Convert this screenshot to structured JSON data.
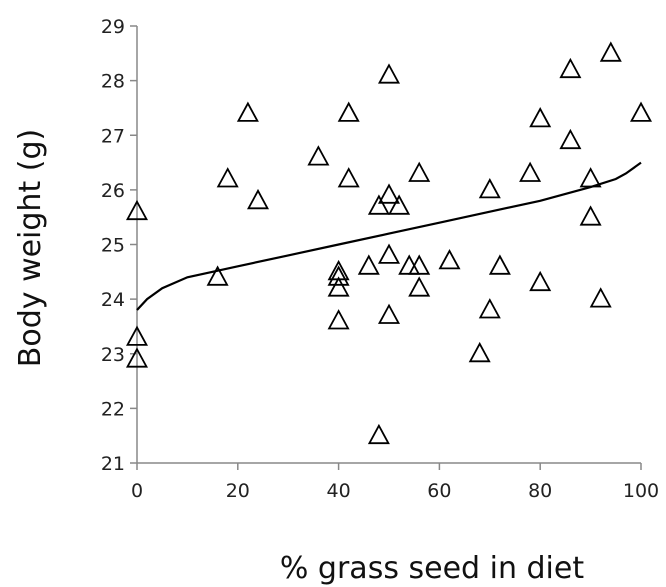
{
  "chart_data": {
    "type": "scatter",
    "xlabel": "% grass seed in diet",
    "ylabel": "Body weight (g)",
    "xlim": [
      0,
      100
    ],
    "ylim": [
      21,
      29
    ],
    "xticks": [
      "0",
      "20",
      "40",
      "60",
      "80",
      "100"
    ],
    "yticks": [
      "21",
      "22",
      "23",
      "24",
      "25",
      "26",
      "27",
      "28",
      "29"
    ],
    "grid": false,
    "marker": "open-triangle",
    "points": [
      {
        "x": 0,
        "y": 25.6
      },
      {
        "x": 0,
        "y": 23.3
      },
      {
        "x": 0,
        "y": 22.9
      },
      {
        "x": 16,
        "y": 24.4
      },
      {
        "x": 18,
        "y": 26.2
      },
      {
        "x": 22,
        "y": 27.4
      },
      {
        "x": 24,
        "y": 25.8
      },
      {
        "x": 36,
        "y": 26.6
      },
      {
        "x": 40,
        "y": 24.5
      },
      {
        "x": 40,
        "y": 24.4
      },
      {
        "x": 40,
        "y": 24.2
      },
      {
        "x": 40,
        "y": 23.6
      },
      {
        "x": 42,
        "y": 27.4
      },
      {
        "x": 42,
        "y": 26.2
      },
      {
        "x": 46,
        "y": 24.6
      },
      {
        "x": 48,
        "y": 25.7
      },
      {
        "x": 48,
        "y": 21.5
      },
      {
        "x": 50,
        "y": 28.1
      },
      {
        "x": 50,
        "y": 25.9
      },
      {
        "x": 50,
        "y": 24.8
      },
      {
        "x": 50,
        "y": 23.7
      },
      {
        "x": 52,
        "y": 25.7
      },
      {
        "x": 54,
        "y": 24.6
      },
      {
        "x": 56,
        "y": 26.3
      },
      {
        "x": 56,
        "y": 24.6
      },
      {
        "x": 56,
        "y": 24.2
      },
      {
        "x": 62,
        "y": 24.7
      },
      {
        "x": 68,
        "y": 23.0
      },
      {
        "x": 70,
        "y": 26.0
      },
      {
        "x": 70,
        "y": 23.8
      },
      {
        "x": 72,
        "y": 24.6
      },
      {
        "x": 78,
        "y": 26.3
      },
      {
        "x": 80,
        "y": 27.3
      },
      {
        "x": 80,
        "y": 24.3
      },
      {
        "x": 86,
        "y": 28.2
      },
      {
        "x": 86,
        "y": 26.9
      },
      {
        "x": 90,
        "y": 26.2
      },
      {
        "x": 90,
        "y": 25.5
      },
      {
        "x": 92,
        "y": 24.0
      },
      {
        "x": 94,
        "y": 28.5
      },
      {
        "x": 100,
        "y": 27.4
      }
    ],
    "fit_line": {
      "x": [
        0,
        2,
        5,
        10,
        15,
        20,
        30,
        40,
        50,
        60,
        70,
        80,
        90,
        95,
        97,
        100
      ],
      "y": [
        23.8,
        24.0,
        24.2,
        24.4,
        24.5,
        24.6,
        24.8,
        25.0,
        25.2,
        25.4,
        25.6,
        25.8,
        26.05,
        26.2,
        26.3,
        26.5
      ]
    },
    "colors": {
      "marker": "#000000",
      "line": "#000000",
      "axis": "#888888",
      "text": "#222222"
    }
  }
}
